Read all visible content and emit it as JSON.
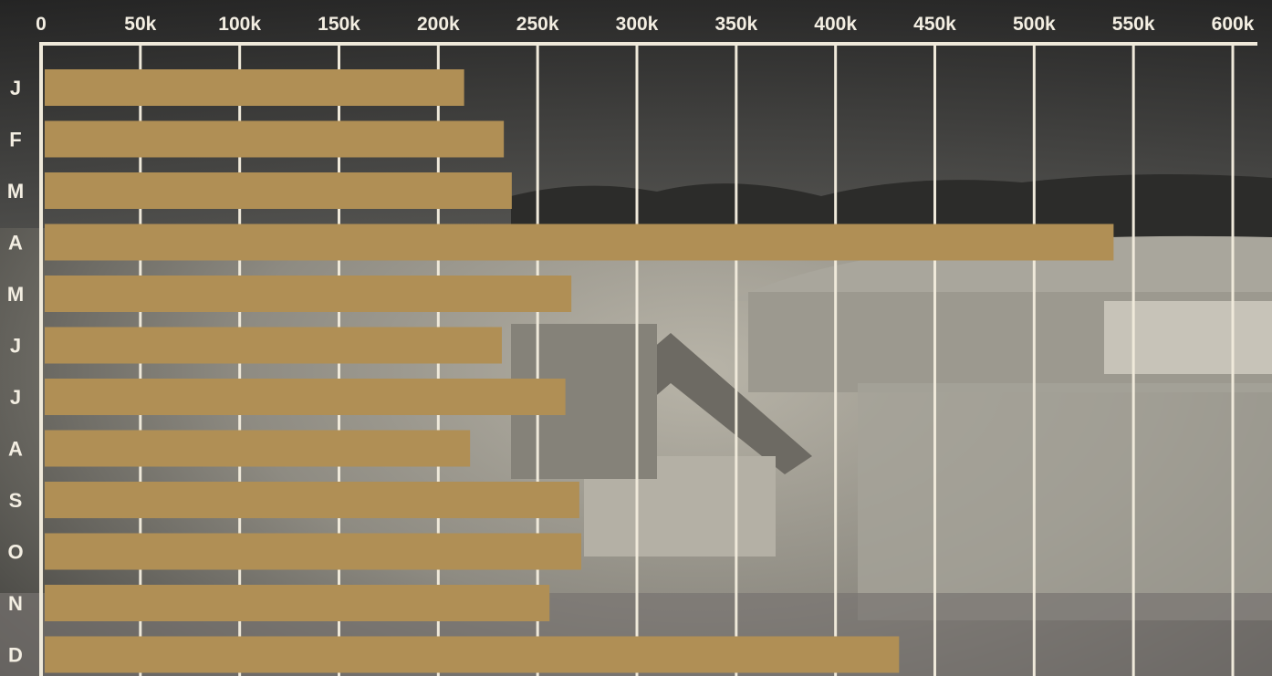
{
  "colors": {
    "bar": "#b08f55",
    "grid": "#efe9da",
    "text": "#f3eee2"
  },
  "background": "sepia photo of an amusement park fairground",
  "chart_data": {
    "type": "bar",
    "orientation": "horizontal",
    "title": "",
    "xlabel": "",
    "ylabel": "",
    "categories": [
      "J",
      "F",
      "M",
      "A",
      "M",
      "J",
      "J",
      "A",
      "S",
      "O",
      "N",
      "D"
    ],
    "values": [
      213000,
      233000,
      237000,
      540000,
      267000,
      232000,
      264000,
      216000,
      271000,
      272000,
      256000,
      432000
    ],
    "xlim": [
      0,
      600000
    ],
    "x_ticks": [
      0,
      50000,
      100000,
      150000,
      200000,
      250000,
      300000,
      350000,
      400000,
      450000,
      500000,
      550000,
      600000
    ],
    "x_tick_labels": [
      "0",
      "50k",
      "100k",
      "150k",
      "200k",
      "250k",
      "300k",
      "350k",
      "400k",
      "450k",
      "500k",
      "550k",
      "600k"
    ],
    "axis_position": "top",
    "grid": true,
    "legend": "none"
  }
}
